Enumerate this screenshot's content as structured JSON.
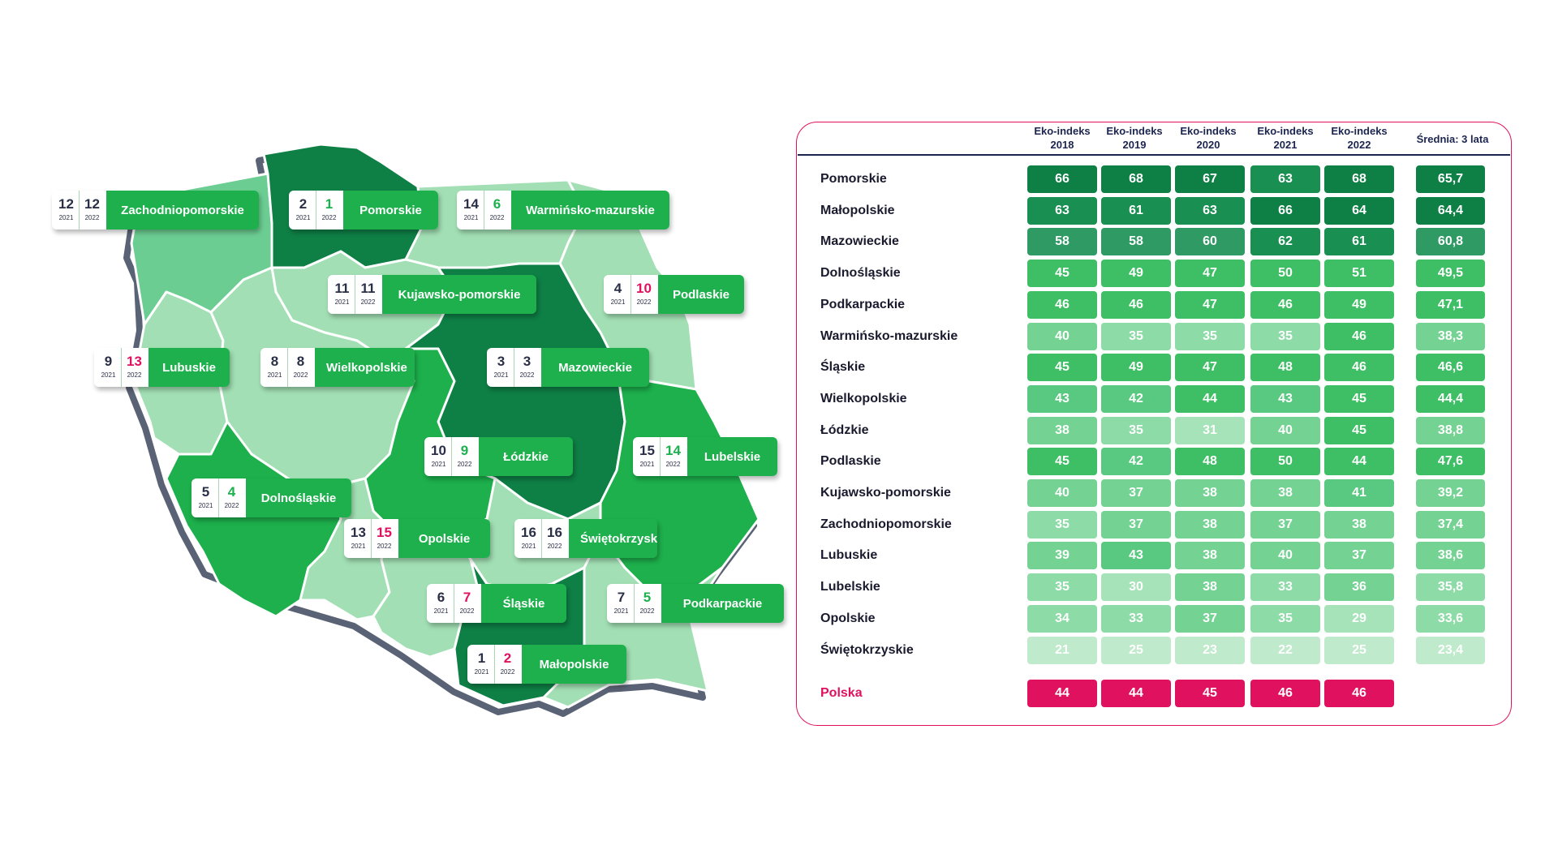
{
  "chart_data": {
    "type": "table",
    "title": "Eko-indeks",
    "columns": [
      "Eko-indeks 2018",
      "Eko-indeks 2019",
      "Eko-indeks 2020",
      "Eko-indeks 2021",
      "Eko-indeks 2022",
      "Średnia: 3 lata"
    ],
    "headers": [
      {
        "line1": "Eko-indeks",
        "line2": "2018"
      },
      {
        "line1": "Eko-indeks",
        "line2": "2019"
      },
      {
        "line1": "Eko-indeks",
        "line2": "2020"
      },
      {
        "line1": "Eko-indeks",
        "line2": "2021"
      },
      {
        "line1": "Eko-indeks",
        "line2": "2022"
      },
      {
        "line1": "Średnia: 3 lata",
        "line2": ""
      }
    ],
    "rows": [
      {
        "name": "Pomorskie",
        "values": [
          66,
          68,
          67,
          63,
          68
        ],
        "avg": "65,7"
      },
      {
        "name": "Małopolskie",
        "values": [
          63,
          61,
          63,
          66,
          64
        ],
        "avg": "64,4"
      },
      {
        "name": "Mazowieckie",
        "values": [
          58,
          58,
          60,
          62,
          61
        ],
        "avg": "60,8"
      },
      {
        "name": "Dolnośląskie",
        "values": [
          45,
          49,
          47,
          50,
          51
        ],
        "avg": "49,5"
      },
      {
        "name": "Podkarpackie",
        "values": [
          46,
          46,
          47,
          46,
          49
        ],
        "avg": "47,1"
      },
      {
        "name": "Warmińsko-mazurskie",
        "values": [
          40,
          35,
          35,
          35,
          46
        ],
        "avg": "38,3"
      },
      {
        "name": "Śląskie",
        "values": [
          45,
          49,
          47,
          48,
          46
        ],
        "avg": "46,6"
      },
      {
        "name": "Wielkopolskie",
        "values": [
          43,
          42,
          44,
          43,
          45
        ],
        "avg": "44,4"
      },
      {
        "name": "Łódzkie",
        "values": [
          38,
          35,
          31,
          40,
          45
        ],
        "avg": "38,8"
      },
      {
        "name": "Podlaskie",
        "values": [
          45,
          42,
          48,
          50,
          44
        ],
        "avg": "47,6"
      },
      {
        "name": "Kujawsko-pomorskie",
        "values": [
          40,
          37,
          38,
          38,
          41
        ],
        "avg": "39,2"
      },
      {
        "name": "Zachodniopomorskie",
        "values": [
          35,
          37,
          38,
          37,
          38
        ],
        "avg": "37,4"
      },
      {
        "name": "Lubuskie",
        "values": [
          39,
          43,
          38,
          40,
          37
        ],
        "avg": "38,6"
      },
      {
        "name": "Lubelskie",
        "values": [
          35,
          30,
          38,
          33,
          36
        ],
        "avg": "35,8"
      },
      {
        "name": "Opolskie",
        "values": [
          34,
          33,
          37,
          35,
          29
        ],
        "avg": "33,6"
      },
      {
        "name": "Świętokrzyskie",
        "values": [
          21,
          25,
          23,
          22,
          25
        ],
        "avg": "23,4"
      }
    ],
    "total": {
      "name": "Polska",
      "values": [
        44,
        44,
        45,
        46,
        46
      ]
    }
  },
  "map": {
    "year_a": "2021",
    "year_b": "2022",
    "badges": [
      {
        "name": "Zachodniopomorskie",
        "r2021": 12,
        "r2022": 12
      },
      {
        "name": "Pomorskie",
        "r2021": 2,
        "r2022": 1
      },
      {
        "name": "Warmińsko-mazurskie",
        "r2021": 14,
        "r2022": 6
      },
      {
        "name": "Kujawsko-pomorskie",
        "r2021": 11,
        "r2022": 11
      },
      {
        "name": "Podlaskie",
        "r2021": 4,
        "r2022": 10
      },
      {
        "name": "Lubuskie",
        "r2021": 9,
        "r2022": 13
      },
      {
        "name": "Wielkopolskie",
        "r2021": 8,
        "r2022": 8
      },
      {
        "name": "Mazowieckie",
        "r2021": 3,
        "r2022": 3
      },
      {
        "name": "Łódzkie",
        "r2021": 10,
        "r2022": 9
      },
      {
        "name": "Lubelskie",
        "r2021": 15,
        "r2022": 14
      },
      {
        "name": "Dolnośląskie",
        "r2021": 5,
        "r2022": 4
      },
      {
        "name": "Opolskie",
        "r2021": 13,
        "r2022": 15
      },
      {
        "name": "Świętokrzyskie",
        "r2021": 16,
        "r2022": 16
      },
      {
        "name": "Śląskie",
        "r2021": 6,
        "r2022": 7
      },
      {
        "name": "Podkarpackie",
        "r2021": 7,
        "r2022": 5
      },
      {
        "name": "Małopolskie",
        "r2021": 1,
        "r2022": 2
      }
    ]
  },
  "colors": {
    "accent": "#e0115f",
    "badge_green": "#1db04c",
    "rank_up": "#1bb14d",
    "rank_down": "#e0115f",
    "dark_text": "#2a2f48"
  }
}
